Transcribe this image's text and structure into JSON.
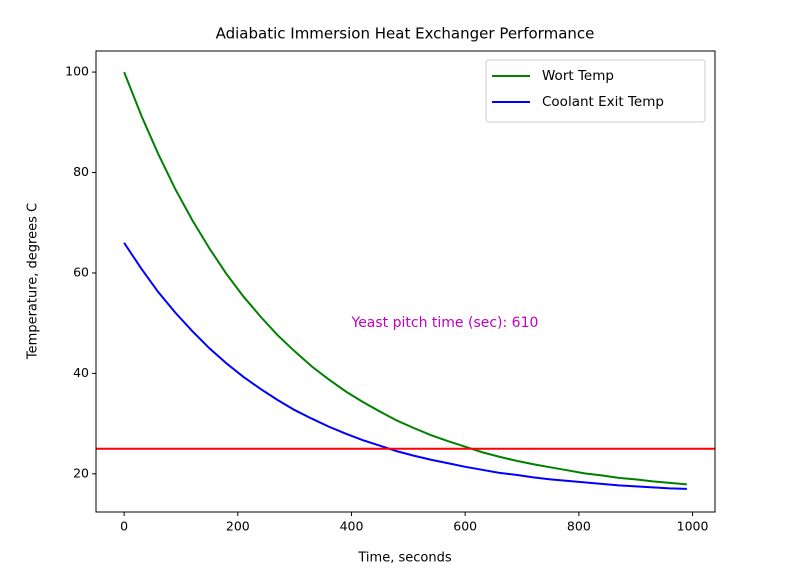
{
  "chart_data": {
    "type": "line",
    "title": "Adiabatic Immersion Heat Exchanger Performance",
    "xlabel": "Time, seconds",
    "ylabel": "Temperature, degrees C",
    "x": [
      0,
      30,
      60,
      90,
      120,
      150,
      180,
      210,
      240,
      270,
      300,
      330,
      360,
      390,
      420,
      450,
      480,
      510,
      540,
      570,
      600,
      630,
      660,
      690,
      720,
      750,
      780,
      810,
      840,
      870,
      900,
      930,
      960,
      990
    ],
    "series": [
      {
        "name": "Wort Temp",
        "color": "#008000",
        "values": [
          100,
          91.4,
          83.7,
          76.7,
          70.5,
          64.9,
          59.8,
          55.3,
          51.3,
          47.6,
          44.4,
          41.4,
          38.8,
          36.4,
          34.3,
          32.4,
          30.6,
          29.1,
          27.7,
          26.5,
          25.4,
          24.3,
          23.4,
          22.6,
          21.9,
          21.3,
          20.7,
          20.1,
          19.7,
          19.2,
          18.9,
          18.5,
          18.2,
          17.9
        ]
      },
      {
        "name": "Coolant Exit Temp",
        "color": "#0000ff",
        "values": [
          66,
          60.9,
          56.2,
          52.1,
          48.4,
          45.0,
          42.0,
          39.3,
          36.9,
          34.7,
          32.7,
          31.0,
          29.4,
          28.0,
          26.7,
          25.6,
          24.5,
          23.6,
          22.8,
          22.1,
          21.4,
          20.8,
          20.2,
          19.8,
          19.3,
          18.9,
          18.6,
          18.3,
          18.0,
          17.7,
          17.5,
          17.3,
          17.1,
          17.0
        ]
      }
    ],
    "hline": {
      "y": 25,
      "color": "#ff0000"
    },
    "annotation": {
      "text": "Yeast pitch time (sec): 610",
      "x": 400,
      "y": 50,
      "color": "#bf00bf"
    },
    "xlim": [
      -49.5,
      1039.5
    ],
    "xticks": [
      0,
      200,
      400,
      600,
      800,
      1000
    ],
    "ylim": [
      12.4,
      104.2
    ],
    "yticks": [
      20,
      40,
      60,
      80,
      100
    ],
    "grid": false,
    "legend": "upper right"
  }
}
